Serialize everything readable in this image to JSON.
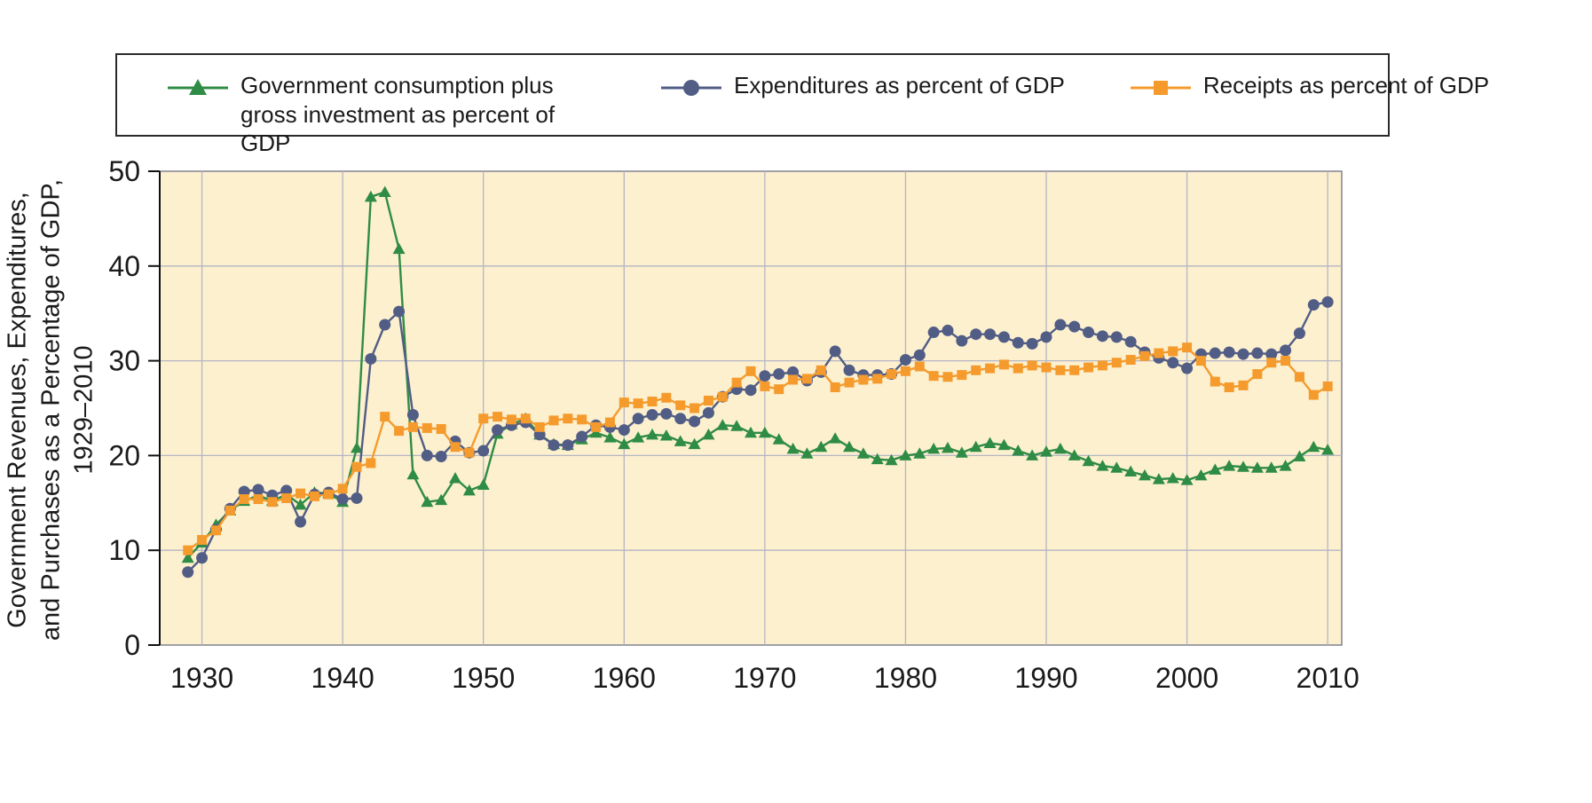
{
  "legend": {
    "items": [
      {
        "id": "purchases",
        "label": "Government consumption plus gross investment as percent of GDP",
        "color": "#2f8c45",
        "marker": "triangle"
      },
      {
        "id": "expenditures",
        "label": "Expenditures as percent of GDP",
        "color": "#525d85",
        "marker": "circle"
      },
      {
        "id": "receipts",
        "label": "Receipts as percent of GDP",
        "color": "#f59b2d",
        "marker": "square"
      }
    ]
  },
  "y_axis_title_lines": [
    "Government Revenues, Expenditures,",
    "and Purchases as a Percentage of GDP,",
    "1929–2010"
  ],
  "chart_data": {
    "type": "line",
    "title": "",
    "xlabel": "",
    "ylabel": "Government Revenues, Expenditures, and Purchases as a Percentage of GDP, 1929–2010",
    "xlim": [
      1927,
      2011
    ],
    "ylim": [
      0,
      50
    ],
    "xticks": [
      1930,
      1940,
      1950,
      1960,
      1970,
      1980,
      1990,
      2000,
      2010
    ],
    "yticks": [
      0,
      10,
      20,
      30,
      40,
      50
    ],
    "grid": true,
    "legend_position": "top",
    "plot_bg": "#fcf0cf",
    "grid_color": "#b5b5c4",
    "border_color": "#82828f",
    "axis_color": "#111111",
    "years": [
      1929,
      1930,
      1931,
      1932,
      1933,
      1934,
      1935,
      1936,
      1937,
      1938,
      1939,
      1940,
      1941,
      1942,
      1943,
      1944,
      1945,
      1946,
      1947,
      1948,
      1949,
      1950,
      1951,
      1952,
      1953,
      1954,
      1955,
      1956,
      1957,
      1958,
      1959,
      1960,
      1961,
      1962,
      1963,
      1964,
      1965,
      1966,
      1967,
      1968,
      1969,
      1970,
      1971,
      1972,
      1973,
      1974,
      1975,
      1976,
      1977,
      1978,
      1979,
      1980,
      1981,
      1982,
      1983,
      1984,
      1985,
      1986,
      1987,
      1988,
      1989,
      1990,
      1991,
      1992,
      1993,
      1994,
      1995,
      1996,
      1997,
      1998,
      1999,
      2000,
      2001,
      2002,
      2003,
      2004,
      2005,
      2006,
      2007,
      2008,
      2009,
      2010
    ],
    "series": [
      {
        "id": "purchases",
        "name": "Government consumption plus gross investment as percent of GDP",
        "color": "#2f8c45",
        "marker": "triangle",
        "values": [
          9.2,
          10.8,
          12.7,
          14.2,
          15.2,
          15.8,
          15.2,
          15.9,
          14.8,
          16.1,
          16.0,
          15.1,
          20.8,
          47.3,
          47.8,
          41.8,
          18.0,
          15.1,
          15.3,
          17.6,
          16.3,
          16.9,
          22.3,
          23.3,
          23.9,
          22.2,
          21.2,
          21.1,
          21.7,
          22.4,
          21.9,
          21.2,
          21.9,
          22.2,
          22.1,
          21.5,
          21.2,
          22.2,
          23.2,
          23.1,
          22.4,
          22.4,
          21.7,
          20.7,
          20.2,
          20.9,
          21.8,
          20.9,
          20.2,
          19.6,
          19.5,
          20.0,
          20.2,
          20.7,
          20.8,
          20.3,
          20.9,
          21.3,
          21.1,
          20.5,
          20.0,
          20.4,
          20.7,
          20.0,
          19.4,
          18.9,
          18.7,
          18.3,
          17.9,
          17.5,
          17.6,
          17.4,
          17.9,
          18.5,
          18.9,
          18.8,
          18.7,
          18.7,
          18.9,
          19.9,
          20.9,
          20.6
        ]
      },
      {
        "id": "expenditures",
        "name": "Expenditures as percent of GDP",
        "color": "#525d85",
        "marker": "circle",
        "values": [
          7.7,
          9.2,
          12.2,
          14.4,
          16.2,
          16.4,
          15.8,
          16.3,
          13.0,
          15.9,
          16.1,
          15.4,
          15.5,
          30.2,
          33.8,
          35.2,
          24.3,
          20.0,
          19.9,
          21.5,
          20.3,
          20.5,
          22.7,
          23.2,
          23.5,
          22.2,
          21.1,
          21.1,
          22.0,
          23.2,
          23.0,
          22.7,
          23.9,
          24.3,
          24.4,
          23.9,
          23.6,
          24.5,
          26.2,
          27.0,
          26.9,
          28.4,
          28.6,
          28.8,
          27.9,
          28.8,
          31.0,
          29.0,
          28.5,
          28.5,
          28.6,
          30.1,
          30.6,
          33.0,
          33.2,
          32.1,
          32.8,
          32.8,
          32.5,
          31.9,
          31.8,
          32.5,
          33.8,
          33.6,
          33.0,
          32.6,
          32.5,
          32.0,
          30.9,
          30.3,
          29.8,
          29.2,
          30.7,
          30.8,
          30.9,
          30.7,
          30.8,
          30.7,
          31.1,
          32.9,
          35.9,
          36.2
        ]
      },
      {
        "id": "receipts",
        "name": "Receipts as percent of GDP",
        "color": "#f59b2d",
        "marker": "square",
        "values": [
          10.0,
          11.1,
          12.1,
          14.2,
          15.4,
          15.4,
          15.1,
          15.5,
          16.0,
          15.7,
          15.9,
          16.5,
          18.8,
          19.2,
          24.1,
          22.6,
          23.0,
          22.9,
          22.8,
          20.9,
          20.3,
          23.9,
          24.1,
          23.8,
          23.9,
          23.0,
          23.7,
          23.9,
          23.8,
          23.0,
          23.5,
          25.6,
          25.5,
          25.7,
          26.1,
          25.3,
          25.0,
          25.8,
          26.2,
          27.7,
          28.9,
          27.3,
          27.0,
          28.0,
          28.1,
          29.0,
          27.2,
          27.7,
          28.0,
          28.1,
          28.6,
          28.9,
          29.4,
          28.4,
          28.3,
          28.5,
          29.0,
          29.2,
          29.6,
          29.2,
          29.5,
          29.3,
          29.0,
          29.0,
          29.3,
          29.5,
          29.8,
          30.1,
          30.5,
          30.8,
          31.0,
          31.4,
          30.0,
          27.8,
          27.2,
          27.4,
          28.6,
          29.8,
          30.0,
          28.3,
          26.4,
          27.3
        ]
      }
    ]
  }
}
